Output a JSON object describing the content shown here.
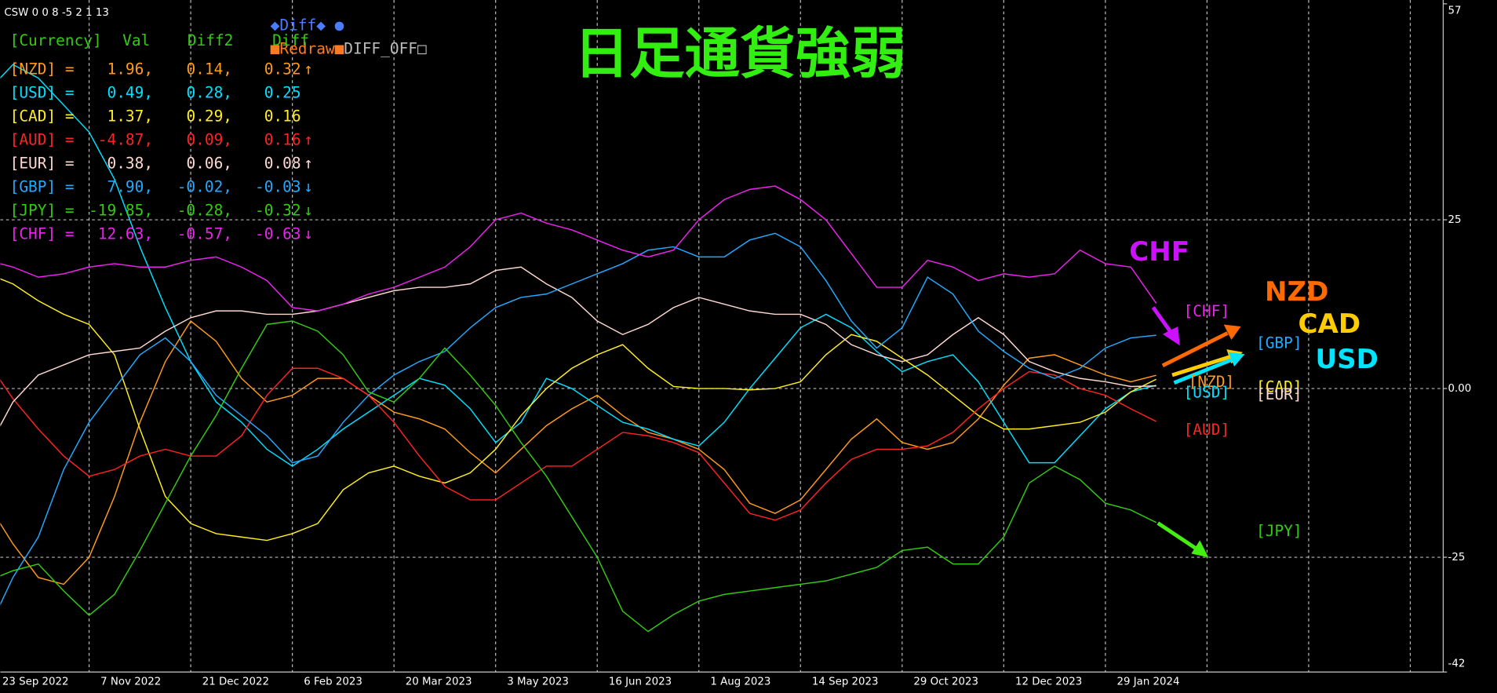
{
  "header_text": "CSW 0 0 8 -5 2 1 13",
  "buttons": [
    "◆Diff◆ ●",
    "■Redraw■",
    "DIFF_OFF□"
  ],
  "panel": {
    "header": [
      "[Currency]",
      "Val",
      "Diff2",
      "Diff"
    ],
    "rows": [
      {
        "name": "[NZD] =",
        "val": "1.96,",
        "diff2": "0.14,",
        "diff": "0.32",
        "arrow": "↑"
      },
      {
        "name": "[USD] =",
        "val": "0.49,",
        "diff2": "0.28,",
        "diff": "0.25"
      },
      {
        "name": "[CAD] =",
        "val": "1.37,",
        "diff2": "0.29,",
        "diff": "0.16"
      },
      {
        "name": "[AUD] =",
        "val": "-4.87,",
        "diff2": "0.09,",
        "diff": "0.16",
        "arrow": "↑"
      },
      {
        "name": "[EUR] =",
        "val": "0.38,",
        "diff2": "0.06,",
        "diff": "0.08",
        "arrow": "↑"
      },
      {
        "name": "[GBP] =",
        "val": "7.90,",
        "diff2": "-0.02,",
        "diff": "-0.03",
        "arrow": "↓"
      },
      {
        "name": "[JPY] =",
        "val": "-19.85,",
        "diff2": "-0.28,",
        "diff": "-0.32",
        "arrow": "↓"
      },
      {
        "name": "[CHF] =",
        "val": "12.63,",
        "diff2": "-0.57,",
        "diff": "-0.63",
        "arrow": "↓"
      }
    ]
  },
  "chart_data": {
    "type": "line",
    "title": "日足通貨強弱",
    "categories": [
      "23 Sep 2022",
      null,
      null,
      null,
      "7 Nov 2022",
      null,
      null,
      null,
      "21 Dec 2022",
      null,
      null,
      null,
      "6 Feb 2023",
      null,
      null,
      null,
      "20 Mar 2023",
      null,
      null,
      null,
      "3 May 2023",
      null,
      null,
      null,
      "16 Jun 2023",
      null,
      null,
      null,
      "1 Aug 2023",
      null,
      null,
      null,
      "14 Sep 2023",
      null,
      null,
      null,
      "29 Oct 2023",
      null,
      null,
      null,
      "12 Dec 2023",
      null,
      null,
      null,
      "29 Jan 2024",
      null,
      null,
      null,
      null,
      null,
      null,
      null,
      null,
      null,
      null,
      null,
      null,
      null
    ],
    "series": [
      {
        "name": "[NZD]",
        "color": "#ff9a1a",
        "values": [
          -17,
          -23,
          -28,
          -29,
          -25,
          -16,
          -5,
          4,
          10,
          7,
          1.5,
          -2,
          -1,
          1.5,
          1.5,
          -1,
          -3.5,
          -4.5,
          -6,
          -9.5,
          -12.5,
          -9,
          -5.5,
          -3,
          -1,
          -4,
          -6.5,
          -7.5,
          -9,
          -12,
          -17,
          -18.5,
          -16.5,
          -12,
          -7.5,
          -4.5,
          -8,
          -9,
          -8,
          -4.5,
          0.5,
          4.5,
          5,
          3.5,
          2,
          1,
          1.96,
          null,
          null,
          null,
          null,
          null,
          null,
          null,
          null,
          null,
          null,
          null
        ]
      },
      {
        "name": "[USD]",
        "color": "#00e0ff",
        "values": [
          44,
          48,
          46,
          42,
          38,
          31,
          21,
          12,
          4,
          -2,
          -5,
          -9,
          -11.5,
          -9,
          -6,
          -3.5,
          -1,
          1.5,
          0.5,
          -3,
          -8,
          -5,
          1.5,
          0,
          -2.5,
          -5,
          -6,
          -7.5,
          -8.5,
          -5,
          0,
          4.5,
          9,
          11,
          9,
          5.5,
          2.5,
          4,
          5,
          1,
          -5,
          -11,
          -11,
          -7,
          -3,
          -0.5,
          0.49,
          null,
          null,
          null,
          null,
          null,
          null,
          null,
          null,
          null,
          null,
          null
        ]
      },
      {
        "name": "[CAD]",
        "color": "#ffee22",
        "values": [
          17,
          15.5,
          13,
          11,
          9.5,
          5,
          -6,
          -16,
          -20,
          -21.5,
          -22,
          -22.5,
          -21.5,
          -20,
          -15,
          -12.5,
          -11.5,
          -13,
          -14,
          -12.5,
          -9,
          -4,
          0,
          3,
          5,
          6.5,
          3,
          0.3,
          0,
          0,
          -0.2,
          0,
          1,
          5,
          8,
          7,
          4.5,
          2,
          -1,
          -4,
          -6,
          -6,
          -5.5,
          -5,
          -3.5,
          -0.5,
          1.37,
          null,
          null,
          null,
          null,
          null,
          null,
          null,
          null,
          null,
          null,
          null
        ]
      },
      {
        "name": "[AUD]",
        "color": "#ff2222",
        "values": [
          4,
          -1.5,
          -6,
          -10,
          -13,
          -12,
          -10,
          -9,
          -10,
          -10,
          -7,
          -1,
          3,
          3,
          1.5,
          -1,
          -5,
          -10,
          -14.5,
          -16.5,
          -16.5,
          -14,
          -11.5,
          -11.5,
          -9,
          -6.5,
          -7,
          -8,
          -9.5,
          -14,
          -18.5,
          -19.5,
          -18,
          -14,
          -10.5,
          -9,
          -9,
          -8.5,
          -6.5,
          -3,
          0,
          2.5,
          2,
          0,
          -1,
          -3,
          -4.87,
          null,
          null,
          null,
          null,
          null,
          null,
          null,
          null,
          null,
          null,
          null
        ]
      },
      {
        "name": "[EUR]",
        "color": "#ffd8d0",
        "values": [
          -9,
          -2,
          2,
          3.5,
          5,
          5.5,
          6,
          8.5,
          10.5,
          11.5,
          11.5,
          11,
          11,
          11.5,
          12.5,
          13.5,
          14.5,
          15,
          15,
          15.5,
          17.5,
          18,
          15.5,
          13.5,
          10,
          8,
          9.5,
          12,
          13.5,
          12.5,
          11.5,
          11,
          11,
          9.5,
          6.5,
          5,
          4,
          5,
          8,
          10.5,
          8,
          4,
          2.5,
          1.5,
          1,
          0.3,
          0.38,
          null,
          null,
          null,
          null,
          null,
          null,
          null,
          null,
          null,
          null,
          null
        ]
      },
      {
        "name": "[GBP]",
        "color": "#22aaff",
        "values": [
          -36,
          -28,
          -22,
          -12,
          -5,
          0,
          5,
          7.5,
          4,
          -1,
          -4,
          -7,
          -11,
          -10,
          -5,
          -1,
          2,
          4,
          5.5,
          9,
          12,
          13.5,
          14,
          15.5,
          17,
          18.5,
          20.5,
          21,
          19.5,
          19.5,
          22,
          23,
          21,
          16,
          10,
          6,
          9,
          16.5,
          14,
          8.5,
          5.5,
          3,
          1.5,
          3,
          6,
          7.5,
          7.9,
          null,
          null,
          null,
          null,
          null,
          null,
          null,
          null,
          null,
          null,
          null
        ]
      },
      {
        "name": "[JPY]",
        "color": "#33cc11",
        "values": [
          -28.5,
          -27,
          -26,
          -30,
          -33.6,
          -30.5,
          -24,
          -17,
          -10,
          -4,
          3,
          9.5,
          10,
          8.5,
          5,
          -0.5,
          -2,
          1.5,
          6,
          2,
          -2.5,
          -8,
          -13,
          -19,
          -25,
          -33,
          -36,
          -33.5,
          -31.5,
          -30.5,
          -30,
          -29.5,
          -29,
          -28.5,
          -27.5,
          -26.5,
          -24,
          -23.5,
          -26,
          -26,
          -22,
          -14,
          -11.5,
          -13.5,
          -17,
          -18,
          -19.85,
          null,
          null,
          null,
          null,
          null,
          null,
          null,
          null,
          null,
          null,
          null
        ]
      },
      {
        "name": "[CHF]",
        "color": "#ee22ee",
        "values": [
          19,
          18,
          16.5,
          17,
          18,
          18.5,
          18,
          18,
          19,
          19.5,
          18,
          16,
          12,
          11.5,
          12.5,
          14,
          15,
          16.5,
          18,
          21,
          25,
          26,
          24.5,
          23.5,
          22,
          20.5,
          19.5,
          20.5,
          25,
          28,
          29.5,
          30,
          28,
          25,
          20,
          15,
          15,
          19,
          18,
          16,
          17,
          16.5,
          17,
          20.5,
          18.5,
          18,
          12.63,
          null,
          null,
          null,
          null,
          null,
          null,
          null,
          null,
          null,
          null,
          null
        ]
      }
    ],
    "ylim": [
      -42,
      57
    ],
    "yticks": [
      -42,
      -25,
      {
        "value": 0,
        "label": "0.00"
      },
      25,
      57
    ],
    "grid": true,
    "annotations": [
      {
        "text": "CHF",
        "color": "#cc11ff"
      },
      {
        "text": "NZD",
        "color": "#ff6a00"
      },
      {
        "text": "CAD",
        "color": "#ffcc00"
      },
      {
        "text": "USD",
        "color": "#00e5ff"
      }
    ]
  }
}
